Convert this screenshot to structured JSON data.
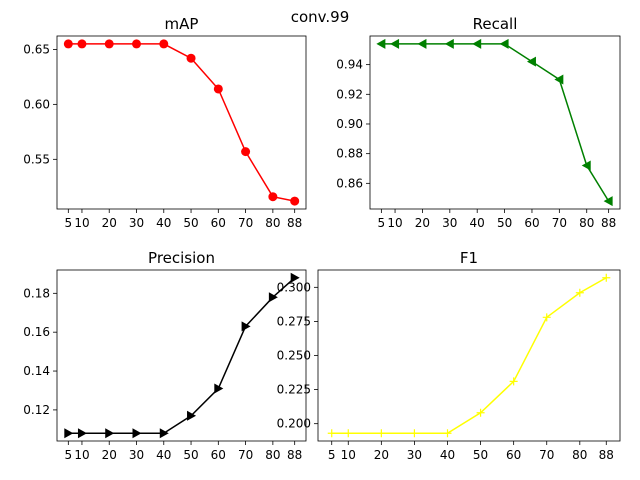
{
  "suptitle": "conv.99",
  "chart_data": [
    {
      "type": "line",
      "title": "mAP",
      "x": [
        5,
        10,
        20,
        30,
        40,
        50,
        60,
        70,
        80,
        88
      ],
      "xticks": [
        "5",
        "10",
        "20",
        "30",
        "40",
        "50",
        "60",
        "70",
        "80",
        "88"
      ],
      "series": [
        {
          "values": [
            0.655,
            0.655,
            0.655,
            0.655,
            0.655,
            0.642,
            0.614,
            0.557,
            0.516,
            0.512
          ],
          "color": "#ff0000",
          "marker": "circle"
        }
      ],
      "yticks": [
        "0.55",
        "0.60",
        "0.65"
      ],
      "ytick_values": [
        0.55,
        0.6,
        0.65
      ],
      "ylim": [
        0.5048,
        0.6622
      ],
      "grid": false
    },
    {
      "type": "line",
      "title": "Recall",
      "x": [
        5,
        10,
        20,
        30,
        40,
        50,
        60,
        70,
        80,
        88
      ],
      "xticks": [
        "5",
        "10",
        "20",
        "30",
        "40",
        "50",
        "60",
        "70",
        "80",
        "88"
      ],
      "series": [
        {
          "values": [
            0.954,
            0.954,
            0.954,
            0.954,
            0.954,
            0.954,
            0.942,
            0.93,
            0.872,
            0.848
          ],
          "color": "#008000",
          "marker": "triangle-left"
        }
      ],
      "yticks": [
        "0.86",
        "0.88",
        "0.90",
        "0.92",
        "0.94"
      ],
      "ytick_values": [
        0.86,
        0.88,
        0.9,
        0.92,
        0.94
      ],
      "ylim": [
        0.8427,
        0.9593
      ],
      "grid": false
    },
    {
      "type": "line",
      "title": "Precision",
      "x": [
        5,
        10,
        20,
        30,
        40,
        50,
        60,
        70,
        80,
        88
      ],
      "xticks": [
        "5",
        "10",
        "20",
        "30",
        "40",
        "50",
        "60",
        "70",
        "80",
        "88"
      ],
      "series": [
        {
          "values": [
            0.108,
            0.108,
            0.108,
            0.108,
            0.108,
            0.117,
            0.131,
            0.163,
            0.178,
            0.188
          ],
          "color": "#000000",
          "marker": "triangle-right"
        }
      ],
      "yticks": [
        "0.12",
        "0.14",
        "0.16",
        "0.18"
      ],
      "ytick_values": [
        0.12,
        0.14,
        0.16,
        0.18
      ],
      "ylim": [
        0.104,
        0.192
      ],
      "grid": false
    },
    {
      "type": "line",
      "title": "F1",
      "x": [
        5,
        10,
        20,
        30,
        40,
        50,
        60,
        70,
        80,
        88
      ],
      "xticks": [
        "5",
        "10",
        "20",
        "30",
        "40",
        "50",
        "60",
        "70",
        "80",
        "88"
      ],
      "series": [
        {
          "values": [
            0.193,
            0.193,
            0.193,
            0.193,
            0.193,
            0.208,
            0.231,
            0.278,
            0.296,
            0.307
          ],
          "color": "#ffff00",
          "marker": "plus"
        }
      ],
      "yticks": [
        "0.200",
        "0.225",
        "0.250",
        "0.275",
        "0.300"
      ],
      "ytick_values": [
        0.2,
        0.225,
        0.25,
        0.275,
        0.3
      ],
      "ylim": [
        0.1873,
        0.3127
      ],
      "grid": false
    }
  ]
}
